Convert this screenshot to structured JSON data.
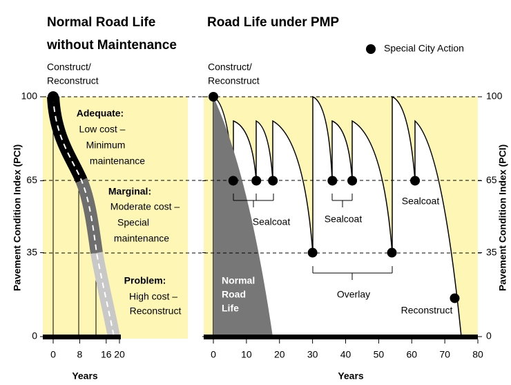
{
  "legend": "Special City Action",
  "chart_data": [
    {
      "type": "line",
      "title": [
        "Normal Road Life",
        "without Maintenance"
      ],
      "start_label": [
        "Construct/",
        "Reconstruct"
      ],
      "ylabel": "Pavement Condition Index (PCI)",
      "xlabel": "Years",
      "xlim": [
        0,
        20
      ],
      "ylim": [
        0,
        100
      ],
      "xticks": [
        0,
        8,
        16,
        20
      ],
      "yticks": [
        0,
        35,
        65,
        100
      ],
      "annotations": [
        {
          "title": "Adequate:",
          "lines": [
            "Low cost –",
            "Minimum",
            "maintenance"
          ]
        },
        {
          "title": "Marginal:",
          "lines": [
            "Moderate cost –",
            "Special",
            "maintenance"
          ]
        },
        {
          "title": "Problem:",
          "lines": [
            "High cost –",
            "Reconstruct"
          ]
        }
      ]
    },
    {
      "type": "line",
      "title": "Road Life under PMP",
      "start_label": [
        "Construct/",
        "Reconstruct"
      ],
      "ylabel": "Pavement Condition Index (PCI)",
      "xlabel": "Years",
      "xlim": [
        0,
        80
      ],
      "ylim": [
        0,
        100
      ],
      "y2lim": [
        0,
        100
      ],
      "xticks": [
        0,
        10,
        20,
        30,
        40,
        50,
        60,
        70,
        80
      ],
      "yticks": [
        0,
        35,
        65,
        100
      ],
      "y2ticks": [
        0,
        35,
        65,
        100
      ],
      "series": [
        {
          "name": "Special City Action",
          "color": "#000000",
          "x": [
            0,
            6,
            13,
            18,
            30,
            36,
            42,
            54,
            61,
            73
          ],
          "values": [
            100,
            65,
            65,
            65,
            35,
            65,
            65,
            35,
            65,
            16
          ]
        }
      ],
      "annotations": [
        "Sealcoat",
        "Sealcoat",
        "Sealcoat",
        "Overlay",
        "Reconstruct"
      ],
      "area_label": [
        "Normal",
        "Road",
        "Life"
      ]
    }
  ]
}
